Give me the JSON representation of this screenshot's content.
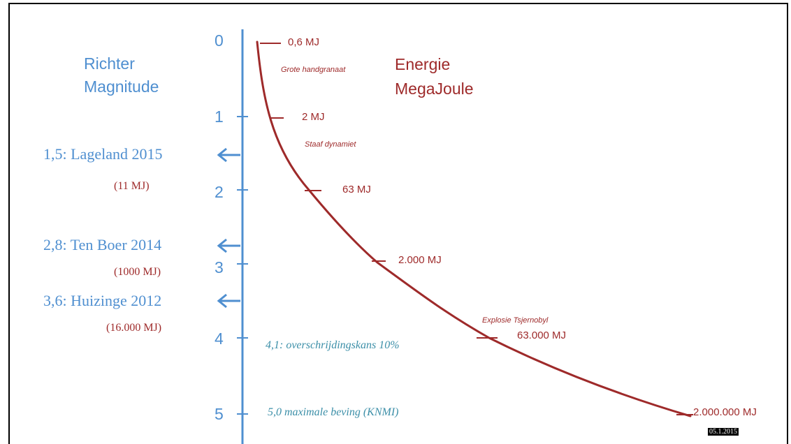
{
  "left_header": [
    "Richter",
    "Magnitude"
  ],
  "right_header": [
    "Energie",
    "MegaJoule"
  ],
  "axis_ticks": [
    "0",
    "1",
    "2",
    "3",
    "4",
    "5"
  ],
  "events": [
    {
      "label": "1,5: Lageland 2015",
      "energy": "(11 MJ)"
    },
    {
      "label": "2,8: Ten Boer 2014",
      "energy": "(1000 MJ)"
    },
    {
      "label": "3,6: Huizinge 2012",
      "energy": "(16.000 MJ)"
    }
  ],
  "energy_labels": [
    {
      "value": "0,6 MJ",
      "desc": "Grote handgranaat"
    },
    {
      "value": "2 MJ",
      "desc": "Staaf dynamiet"
    },
    {
      "value": "63 MJ",
      "desc": ""
    },
    {
      "value": "2.000 MJ",
      "desc": ""
    },
    {
      "value": "63.000 MJ",
      "desc": "Explosie Tsjernobyl"
    },
    {
      "value": "2.000.000 MJ",
      "desc": ""
    }
  ],
  "notes": [
    "4,1: overschrijdingskans 10%",
    "5,0 maximale beving  (KNMI)"
  ],
  "date": "05.1.2015",
  "colors": {
    "blue": "#4f8fd0",
    "red": "#9e2a2a",
    "teal": "#3c8fa8"
  }
}
